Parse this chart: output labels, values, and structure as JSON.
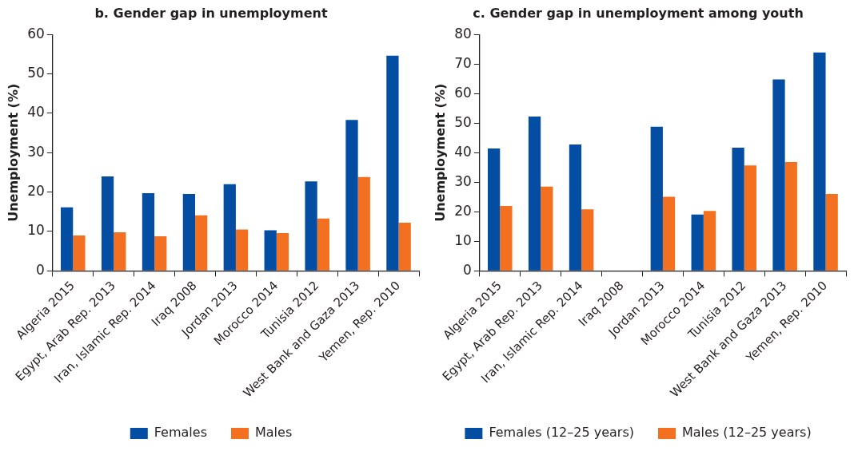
{
  "chart_data": [
    {
      "type": "bar",
      "title": "b. Gender gap in unemployment",
      "ylabel": "Unemployment (%)",
      "categories": [
        "Algeria 2015",
        "Egypt, Arab Rep. 2013",
        "Iran, Islamic Rep. 2014",
        "Iraq 2008",
        "Jordan 2013",
        "Morocco 2014",
        "Tunisia 2012",
        "West Bank and Gaza 2013",
        "Yemen, Rep. 2010"
      ],
      "series": [
        {
          "name": "Females",
          "color": "#034ea2",
          "values": [
            16.1,
            24.0,
            19.7,
            19.5,
            22.0,
            10.3,
            22.7,
            38.3,
            54.6
          ]
        },
        {
          "name": "Males",
          "color": "#f37021",
          "values": [
            9.0,
            9.8,
            8.8,
            14.1,
            10.5,
            9.6,
            13.3,
            23.8,
            12.2
          ]
        }
      ],
      "ylim": [
        0,
        60
      ],
      "yticks": [
        0,
        10,
        20,
        30,
        40,
        50,
        60
      ],
      "grid": false,
      "legend": "bottom"
    },
    {
      "type": "bar",
      "title": "c. Gender gap in unemployment among youth",
      "ylabel": "Unemployment (%)",
      "categories": [
        "Algeria 2015",
        "Egypt, Arab Rep. 2013",
        "Iran, Islamic Rep. 2014",
        "Iraq 2008",
        "Jordan 2013",
        "Morocco 2014",
        "Tunisia 2012",
        "West Bank and Gaza 2013",
        "Yemen, Rep. 2010"
      ],
      "series": [
        {
          "name": "Females (12–25 years)",
          "color": "#034ea2",
          "values": [
            41.4,
            52.2,
            42.8,
            null,
            48.8,
            19.1,
            41.7,
            64.8,
            73.9
          ]
        },
        {
          "name": "Males (12–25 years)",
          "color": "#f37021",
          "values": [
            22.0,
            28.5,
            20.8,
            null,
            25.1,
            20.3,
            35.7,
            36.8,
            26.0
          ]
        }
      ],
      "ylim": [
        0,
        80
      ],
      "yticks": [
        0,
        10,
        20,
        30,
        40,
        50,
        60,
        70,
        80
      ],
      "grid": false,
      "legend": "bottom"
    }
  ]
}
